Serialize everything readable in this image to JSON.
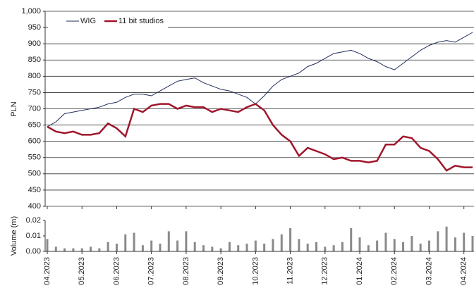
{
  "chart_data": {
    "type": "line",
    "ylabel": "PLN",
    "ylim": [
      400,
      1000
    ],
    "yticks": [
      400,
      450,
      500,
      550,
      600,
      650,
      700,
      750,
      800,
      850,
      900,
      950,
      {
        "value": 1000,
        "label": "1,000"
      }
    ],
    "grid": true,
    "legend": "upper left",
    "categories": [
      "04.2023",
      null,
      null,
      null,
      "05.2023",
      null,
      null,
      null,
      "06.2023",
      null,
      null,
      null,
      "07.2023",
      null,
      null,
      null,
      "08.2023",
      null,
      null,
      null,
      "09.2023",
      null,
      null,
      null,
      "10.2023",
      null,
      null,
      null,
      "11.2023",
      null,
      null,
      null,
      "12.2023",
      null,
      null,
      null,
      "01.2024",
      null,
      null,
      null,
      "02.2024",
      null,
      null,
      null,
      "03.2024",
      null,
      null,
      null,
      "04.2024",
      null
    ],
    "series": [
      {
        "name": "WIG",
        "color": "#1f2d5a",
        "values": [
          645,
          660,
          685,
          690,
          695,
          700,
          705,
          715,
          720,
          735,
          745,
          745,
          740,
          755,
          770,
          785,
          790,
          795,
          780,
          770,
          760,
          755,
          745,
          735,
          715,
          740,
          770,
          790,
          800,
          810,
          830,
          840,
          855,
          870,
          875,
          880,
          870,
          855,
          845,
          830,
          820,
          840,
          860,
          880,
          895,
          905,
          910,
          905,
          920,
          935
        ]
      },
      {
        "name": "11 bit studios",
        "color": "#a0162b",
        "values": [
          645,
          630,
          625,
          630,
          620,
          620,
          625,
          655,
          640,
          615,
          700,
          690,
          710,
          715,
          715,
          700,
          710,
          705,
          705,
          690,
          700,
          695,
          690,
          705,
          715,
          695,
          650,
          620,
          600,
          555,
          580,
          570,
          560,
          545,
          550,
          540,
          540,
          535,
          540,
          590,
          590,
          615,
          610,
          580,
          570,
          545,
          510,
          525,
          520,
          520
        ]
      }
    ],
    "volume": {
      "type": "bar",
      "ylabel": "Volume (m)",
      "color": "#8a8a8a",
      "ylim": [
        0,
        0.02
      ],
      "yticks": [
        {
          "value": 0,
          "label": "0.00"
        },
        0.01,
        0.02
      ],
      "values": [
        0.008,
        0.003,
        0.002,
        0.002,
        0.002,
        0.003,
        0.002,
        0.006,
        0.005,
        0.011,
        0.012,
        0.004,
        0.007,
        0.005,
        0.013,
        0.007,
        0.013,
        0.006,
        0.004,
        0.003,
        0.002,
        0.006,
        0.004,
        0.005,
        0.007,
        0.005,
        0.008,
        0.011,
        0.015,
        0.008,
        0.005,
        0.006,
        0.003,
        0.004,
        0.006,
        0.015,
        0.009,
        0.004,
        0.007,
        0.012,
        0.008,
        0.006,
        0.01,
        0.005,
        0.007,
        0.013,
        0.016,
        0.009,
        0.012,
        0.01
      ]
    }
  }
}
